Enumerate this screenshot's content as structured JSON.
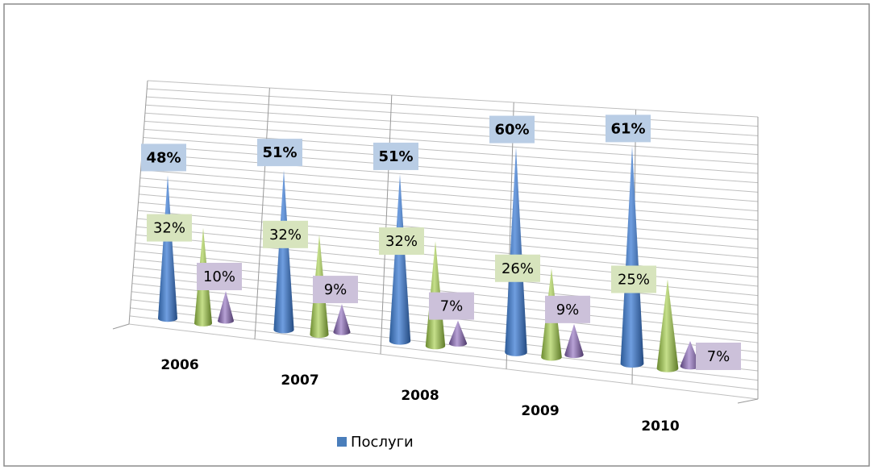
{
  "chart_data": {
    "type": "cone3d",
    "categories": [
      "2006",
      "2007",
      "2008",
      "2009",
      "2010"
    ],
    "series": [
      {
        "name": "Послуги",
        "color": "#4a7ebb",
        "values": [
          48,
          51,
          51,
          60,
          61
        ],
        "value_labels": [
          "48%",
          "51%",
          "51%",
          "60%",
          "61%"
        ]
      },
      {
        "color": "#9bbb59",
        "values": [
          32,
          32,
          32,
          26,
          25
        ],
        "value_labels": [
          "32%",
          "32%",
          "32%",
          "26%",
          "25%"
        ]
      },
      {
        "color": "#8064a2",
        "values": [
          10,
          9,
          7,
          9,
          7
        ],
        "value_labels": [
          "10%",
          "9%",
          "7%",
          "9%",
          "7%"
        ]
      }
    ],
    "legend": "bottom"
  }
}
